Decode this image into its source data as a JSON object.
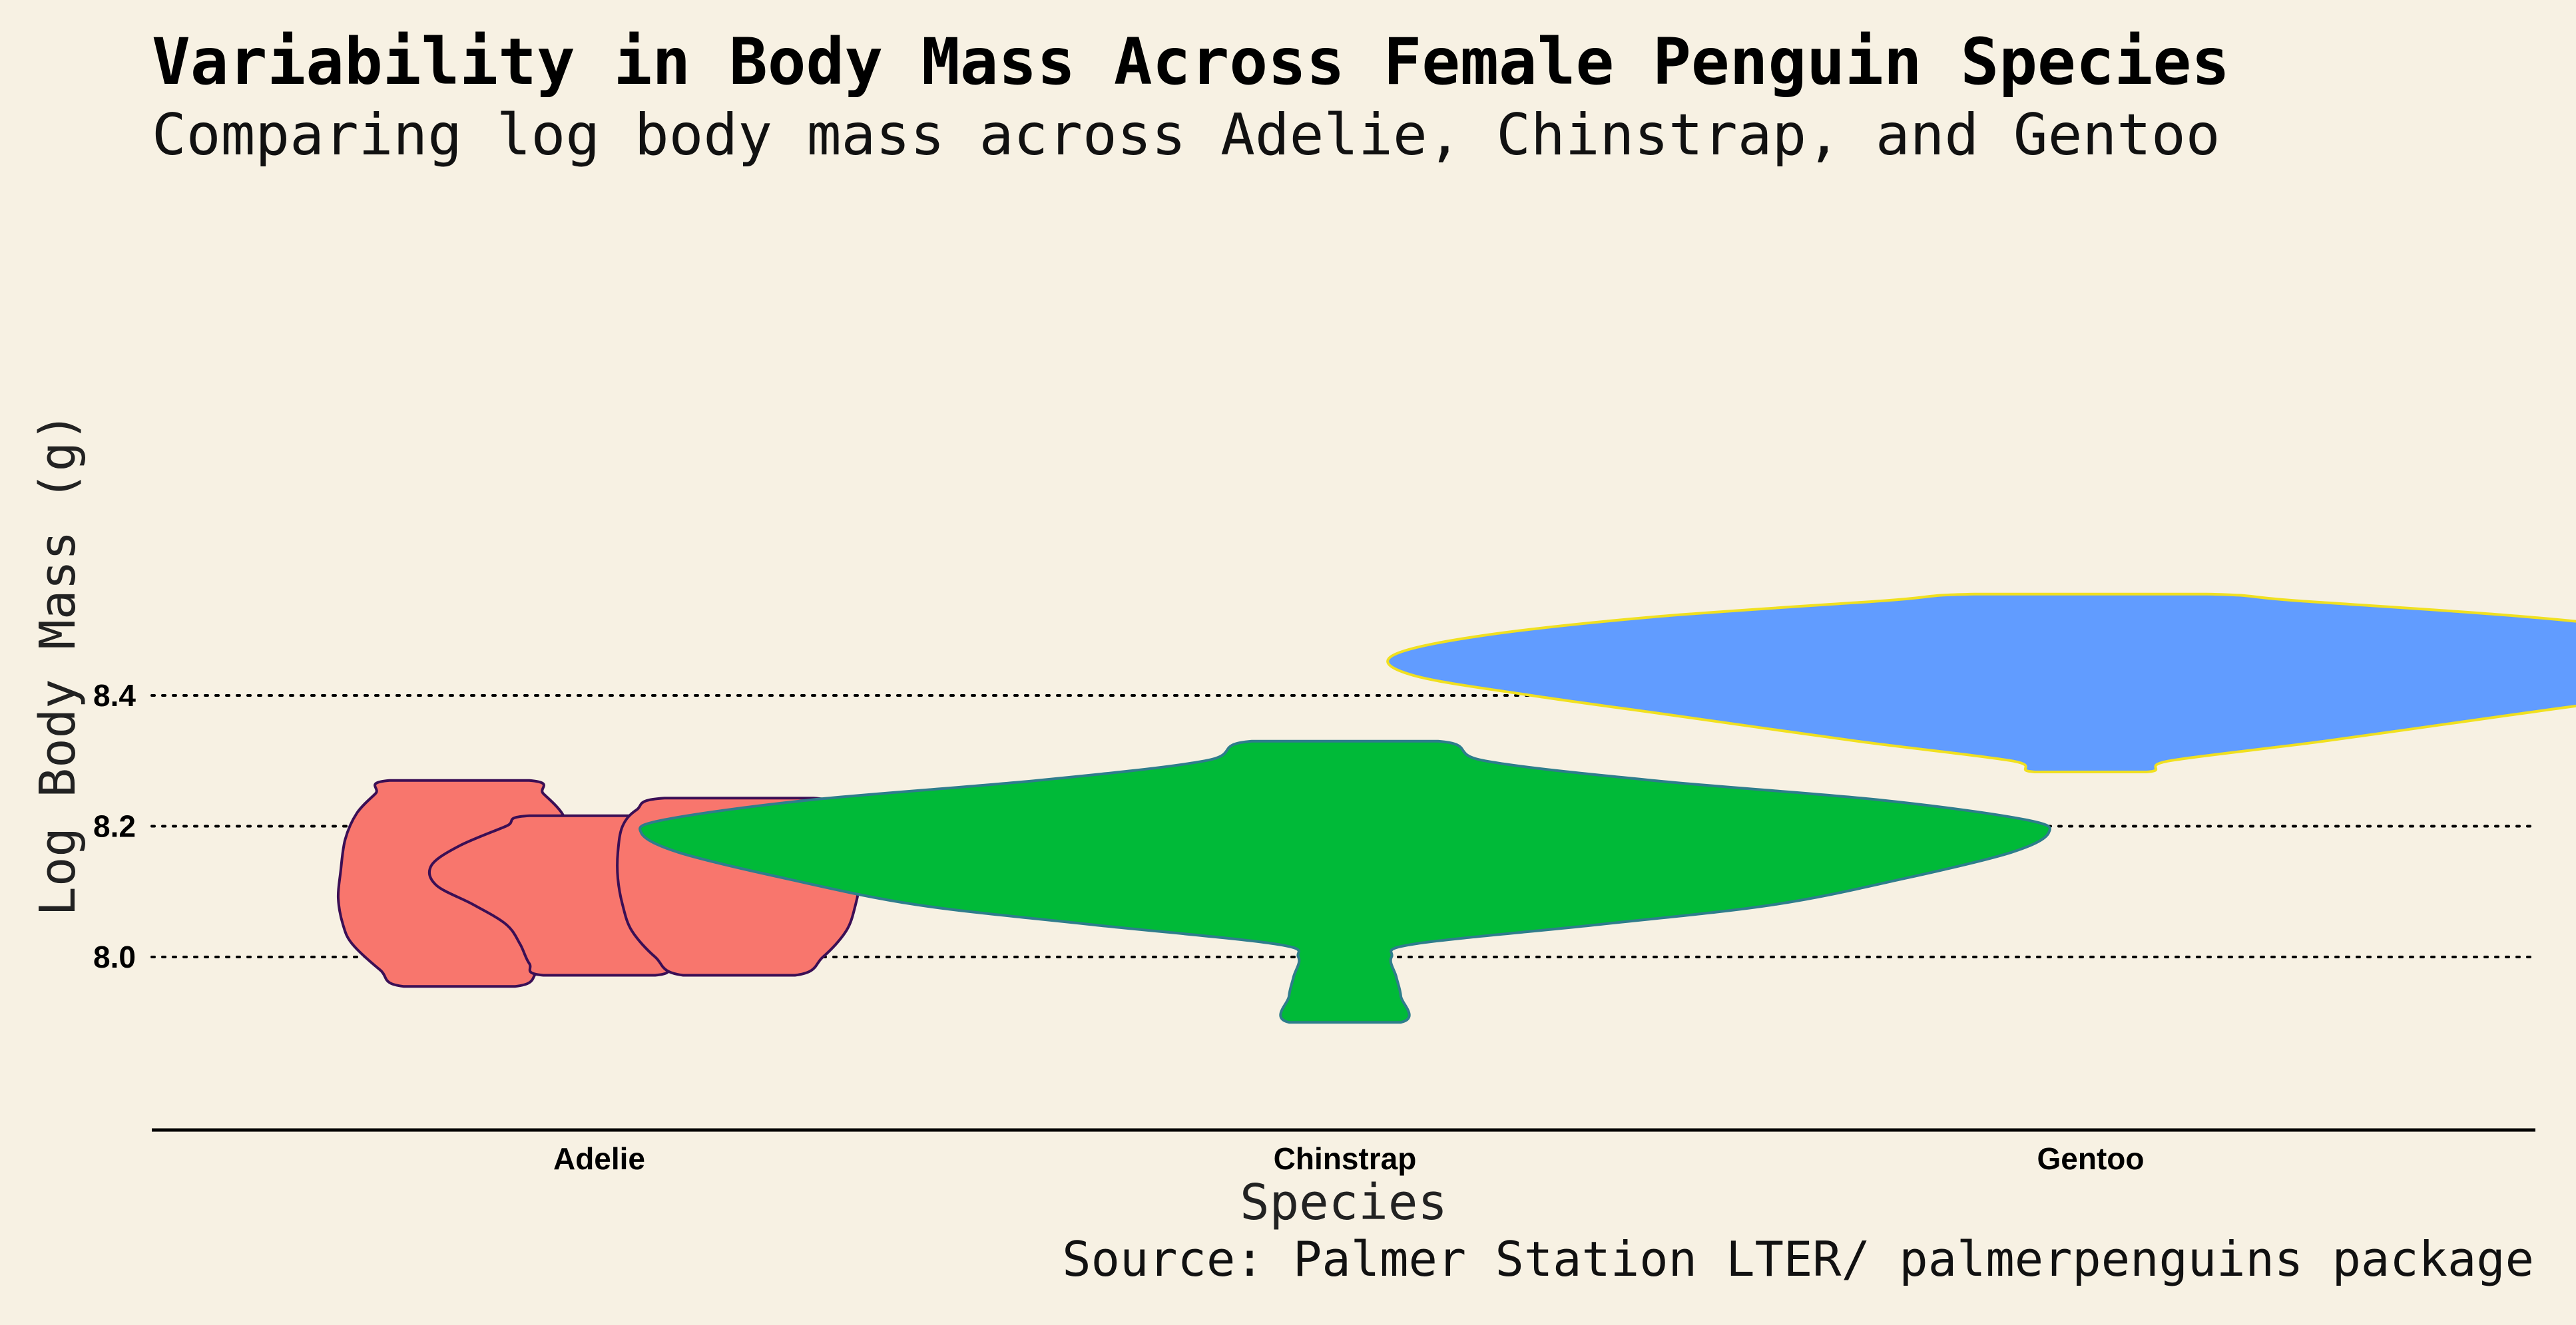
{
  "title": "Variability in Body Mass Across Female Penguin Species",
  "subtitle": "Comparing log body mass across Adelie, Chinstrap, and Gentoo",
  "caption": "Source: Palmer Station LTER/ palmerpenguins package",
  "chart_data": {
    "type": "violin",
    "xlabel": "Species",
    "ylabel": "Log Body Mass (g)",
    "categories": [
      "Adelie",
      "Chinstrap",
      "Gentoo"
    ],
    "y_ticks": [
      8.0,
      8.2,
      8.4
    ],
    "ylim": [
      7.87,
      8.57
    ],
    "grid": "horizontal dotted",
    "legend": "none",
    "violins": [
      {
        "category": "Adelie",
        "offset": -0.3,
        "fill": "#f8766d",
        "stroke": "#3b0f55",
        "min": 7.955,
        "max": 8.27,
        "profile": [
          [
            7.955,
            0.12
          ],
          [
            7.98,
            0.17
          ],
          [
            8.02,
            0.23
          ],
          [
            8.05,
            0.25
          ],
          [
            8.09,
            0.26
          ],
          [
            8.13,
            0.255
          ],
          [
            8.18,
            0.245
          ],
          [
            8.22,
            0.22
          ],
          [
            8.25,
            0.18
          ],
          [
            8.27,
            0.15
          ]
        ]
      },
      {
        "category": "Adelie",
        "offset": 0.0,
        "fill": "#f8766d",
        "stroke": "#3b0f55",
        "min": 7.972,
        "max": 8.216,
        "profile": [
          [
            7.972,
            0.12
          ],
          [
            7.99,
            0.15
          ],
          [
            8.02,
            0.17
          ],
          [
            8.05,
            0.2
          ],
          [
            8.08,
            0.27
          ],
          [
            8.11,
            0.35
          ],
          [
            8.14,
            0.36
          ],
          [
            8.17,
            0.3
          ],
          [
            8.2,
            0.2
          ],
          [
            8.216,
            0.15
          ]
        ]
      },
      {
        "category": "Adelie",
        "offset": 0.3,
        "fill": "#f8766d",
        "stroke": "#3b0f55",
        "min": 7.972,
        "max": 8.243,
        "profile": [
          [
            7.972,
            0.12
          ],
          [
            8.0,
            0.18
          ],
          [
            8.04,
            0.23
          ],
          [
            8.08,
            0.25
          ],
          [
            8.12,
            0.26
          ],
          [
            8.16,
            0.26
          ],
          [
            8.2,
            0.25
          ],
          [
            8.225,
            0.22
          ],
          [
            8.243,
            0.16
          ]
        ]
      },
      {
        "category": "Chinstrap",
        "offset": 0.0,
        "fill": "#00ba38",
        "stroke": "#2e7d8c",
        "min": 7.9,
        "max": 8.33,
        "profile": [
          [
            7.9,
            0.12
          ],
          [
            7.94,
            0.12
          ],
          [
            7.97,
            0.11
          ],
          [
            8.0,
            0.1
          ],
          [
            8.02,
            0.15
          ],
          [
            8.05,
            0.55
          ],
          [
            8.08,
            0.92
          ],
          [
            8.12,
            1.2
          ],
          [
            8.16,
            1.43
          ],
          [
            8.19,
            1.51
          ],
          [
            8.21,
            1.46
          ],
          [
            8.24,
            1.15
          ],
          [
            8.27,
            0.66
          ],
          [
            8.3,
            0.3
          ],
          [
            8.33,
            0.2
          ]
        ]
      },
      {
        "category": "Gentoo",
        "offset": 0.0,
        "fill": "#619cff",
        "stroke": "#f0e020",
        "min": 8.283,
        "max": 8.555,
        "profile": [
          [
            8.283,
            0.12
          ],
          [
            8.3,
            0.17
          ],
          [
            8.33,
            0.5
          ],
          [
            8.37,
            0.9
          ],
          [
            8.4,
            1.2
          ],
          [
            8.43,
            1.45
          ],
          [
            8.46,
            1.5
          ],
          [
            8.49,
            1.32
          ],
          [
            8.52,
            0.94
          ],
          [
            8.545,
            0.44
          ],
          [
            8.555,
            0.25
          ]
        ]
      }
    ]
  }
}
